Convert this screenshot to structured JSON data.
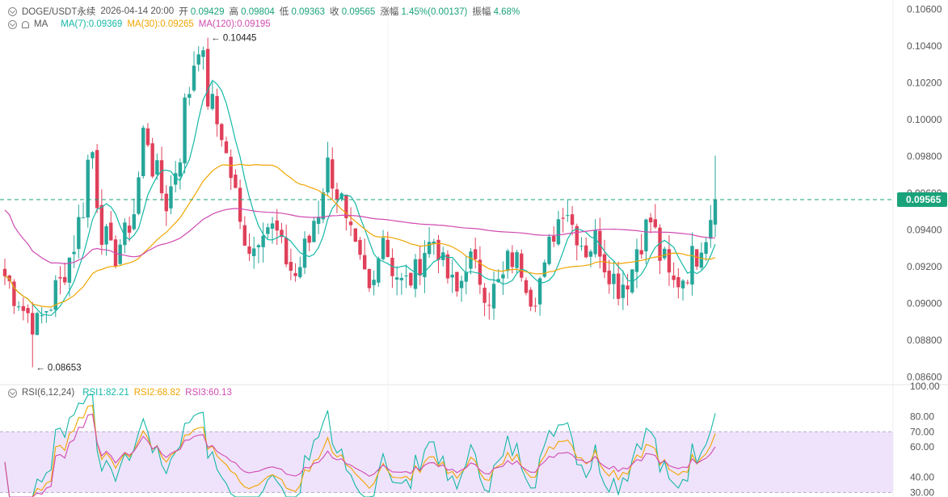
{
  "header": {
    "symbol": "DOGE/USDT永续",
    "datetime": "2026-04-14 20:00",
    "open_label": "开",
    "open": "0.09429",
    "high_label": "高",
    "high": "0.09804",
    "low_label": "低",
    "low": "0.09363",
    "close_label": "收",
    "close": "0.09565",
    "change_label": "涨幅",
    "change": "1.45%(0.00137)",
    "amp_label": "振幅",
    "amp": "4.68%"
  },
  "ma": {
    "label": "MA",
    "ma7": "MA(7):0.09369",
    "ma30": "MA(30):0.09265",
    "ma120": "MA(120):0.09195"
  },
  "rsi": {
    "label": "RSI(6,12,24)",
    "rsi1": "RSI1:82.21",
    "rsi2": "RSI2:68.82",
    "rsi3": "RSI3:60.13"
  },
  "colors": {
    "up": "#26a69a",
    "down": "#e0405a",
    "ma7": "#14b8a6",
    "ma30": "#f0a500",
    "ma120": "#d04ab0",
    "rsi_band": "#efe3fb",
    "price_tag": "#1aa37a"
  },
  "chart_data": {
    "type": "candlestick",
    "price_axis": {
      "ticks": [
        "0.10600",
        "0.10400",
        "0.10200",
        "0.10000",
        "0.09800",
        "0.09600",
        "0.09400",
        "0.09200",
        "0.09000",
        "0.08800",
        "0.08600"
      ],
      "range": [
        0.0855,
        0.1065
      ]
    },
    "rsi_axis": {
      "ticks": [
        "100.00",
        "80.00",
        "70.00",
        "60.00",
        "40.00",
        "30.00"
      ],
      "range": [
        27,
        100
      ],
      "band": [
        30,
        70
      ]
    },
    "current_price": "0.09565",
    "annotations": {
      "high": "0.10445",
      "low": "0.08653"
    },
    "key_closes": [
      0.0915,
      0.0905,
      0.0895,
      0.0888,
      0.0898,
      0.091,
      0.0925,
      0.0945,
      0.0985,
      0.094,
      0.0925,
      0.0935,
      0.095,
      0.0995,
      0.097,
      0.0955,
      0.0975,
      0.1015,
      0.1043,
      0.101,
      0.0995,
      0.097,
      0.094,
      0.093,
      0.0945,
      0.094,
      0.0925,
      0.0915,
      0.093,
      0.095,
      0.0975,
      0.096,
      0.0935,
      0.092,
      0.0905,
      0.094,
      0.092,
      0.091,
      0.0915,
      0.093,
      0.0935,
      0.0915,
      0.0905,
      0.0925,
      0.0915,
      0.0905,
      0.091,
      0.0925,
      0.092,
      0.0905,
      0.0915,
      0.094,
      0.0955,
      0.094,
      0.093,
      0.0935,
      0.092,
      0.091,
      0.0915,
      0.0935,
      0.0945,
      0.0925,
      0.091,
      0.0915,
      0.0925,
      0.0938,
      0.0956
    ],
    "rsi_series": [
      {
        "name": "RSI1",
        "last": 82.21
      },
      {
        "name": "RSI2",
        "last": 68.82
      },
      {
        "name": "RSI3",
        "last": 60.13
      }
    ]
  }
}
